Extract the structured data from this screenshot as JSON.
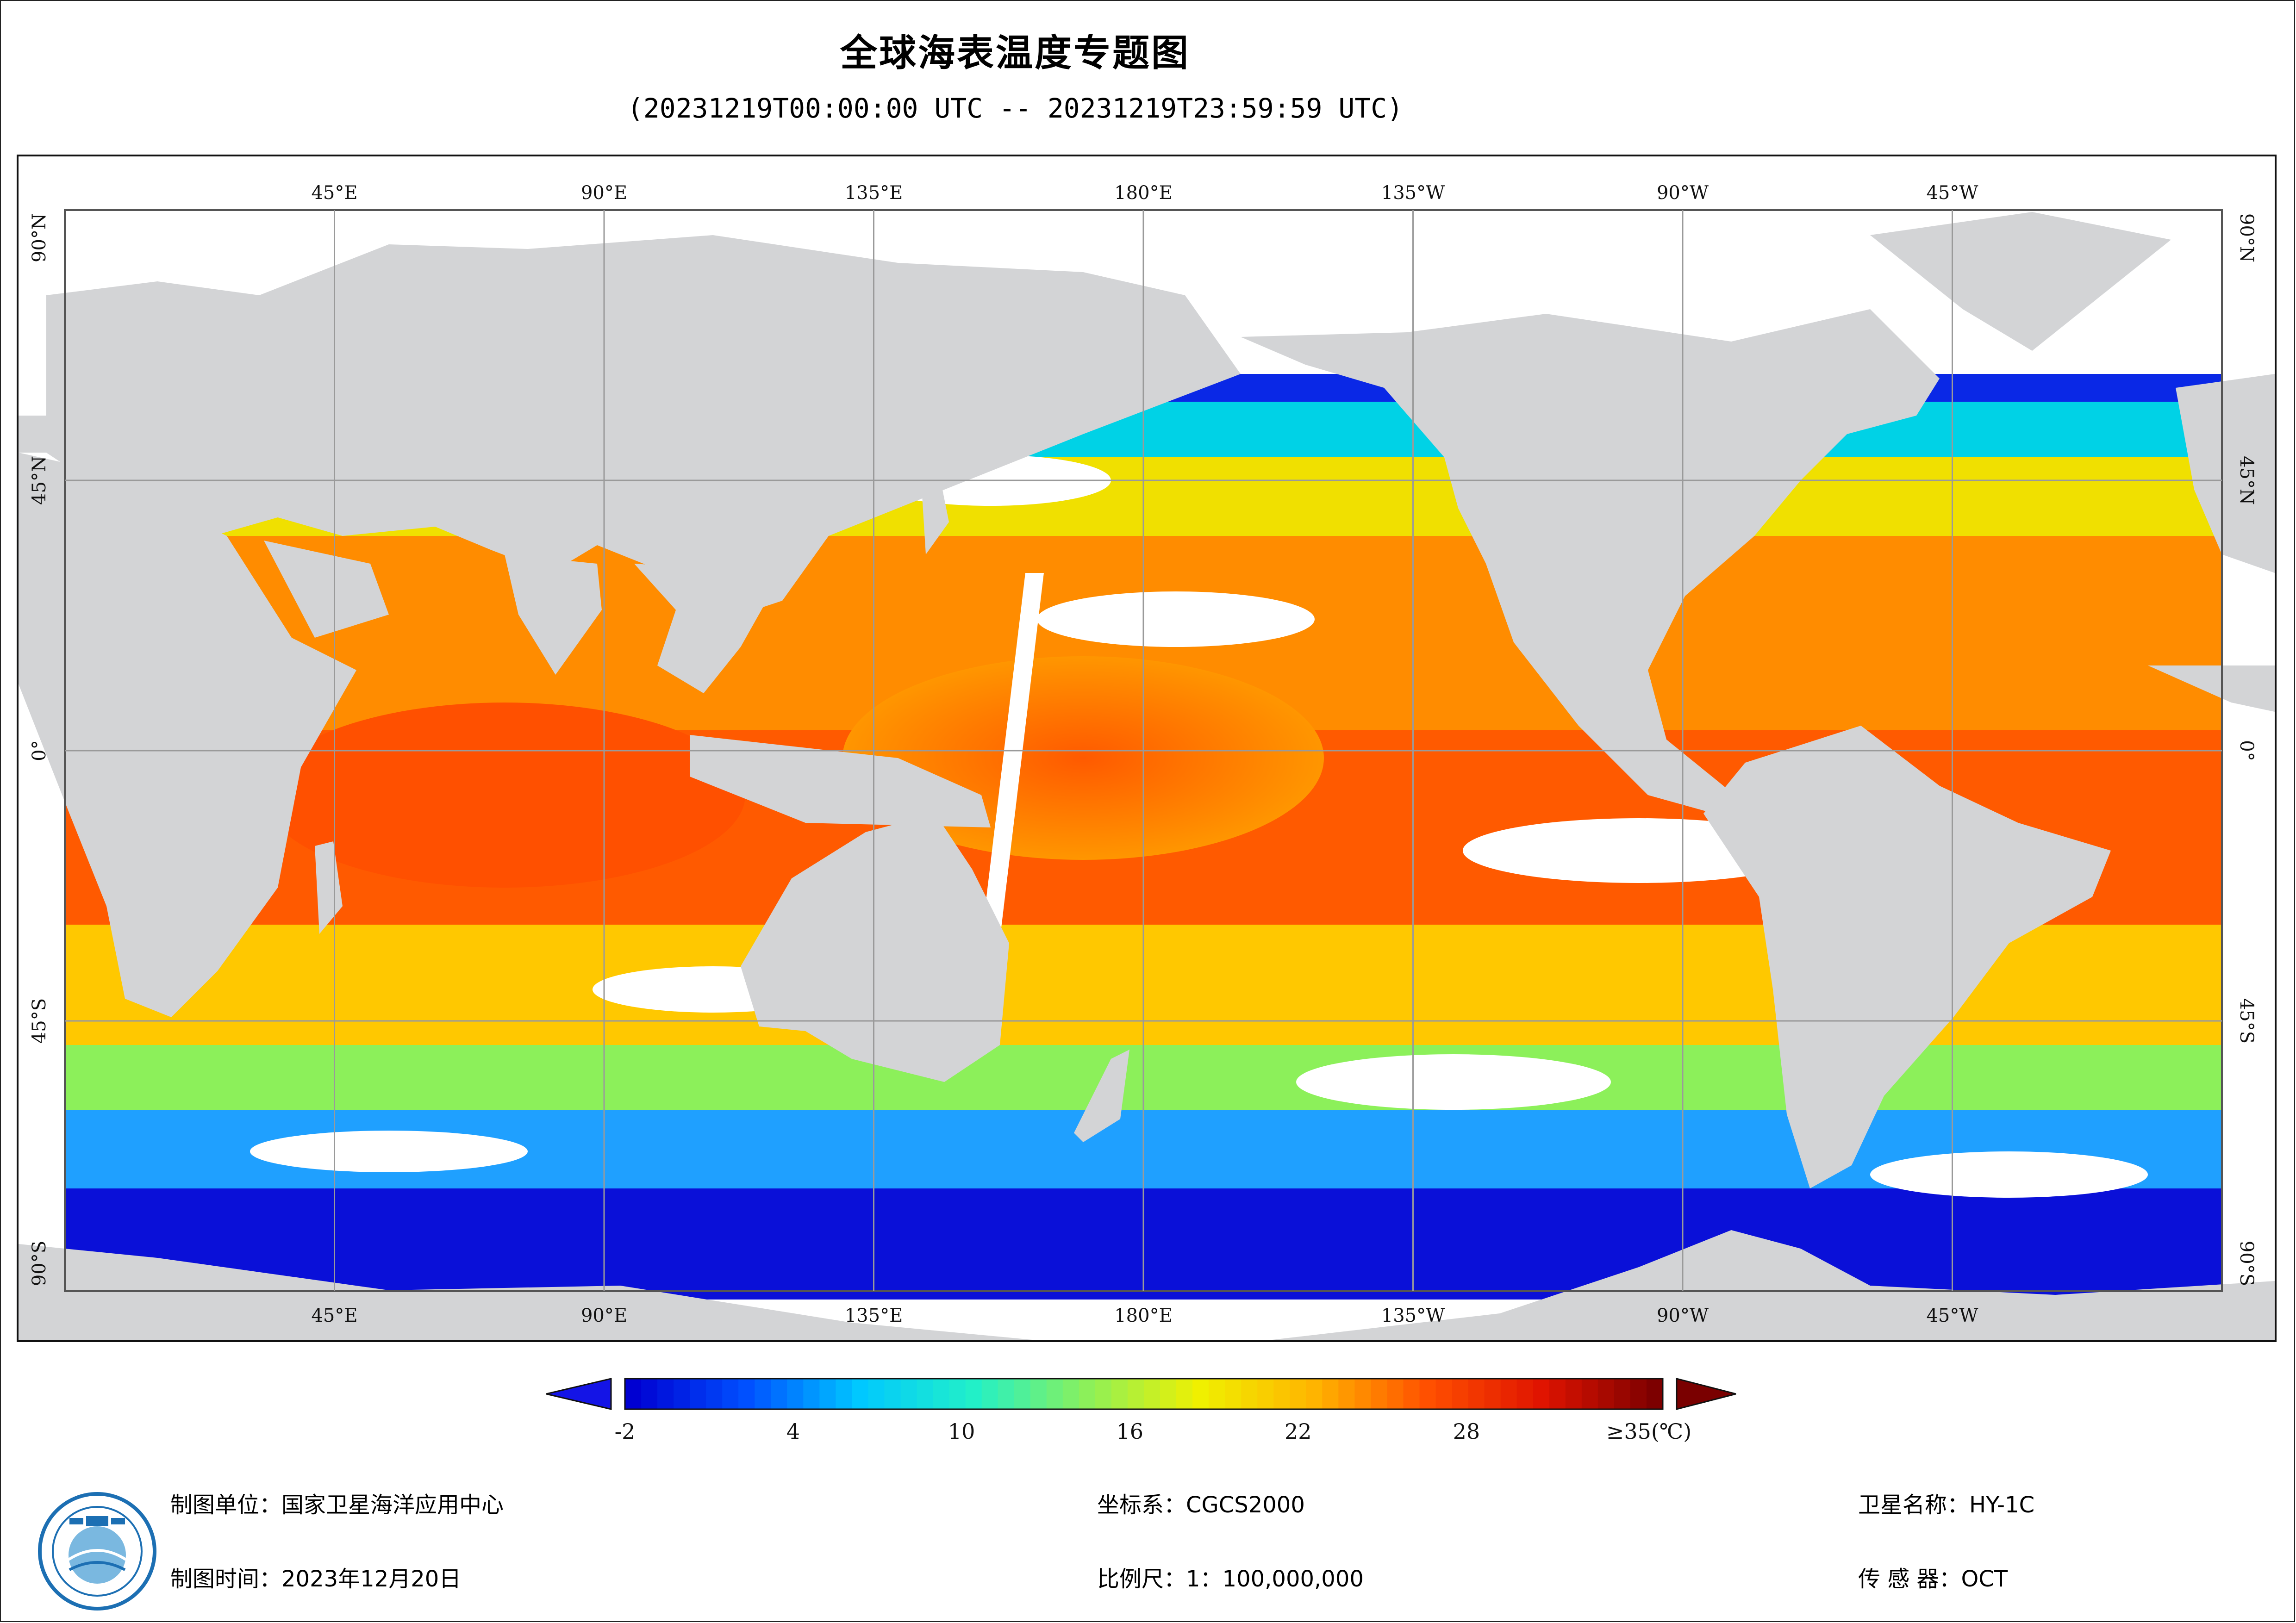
{
  "title": "全球海表温度专题图",
  "subtitle": "(20231219T00:00:00 UTC -- 20231219T23:59:59 UTC)",
  "map": {
    "projection": "equirectangular",
    "lon_range": [
      0,
      360
    ],
    "lat_range": [
      -90,
      90
    ],
    "grid": true,
    "grid_color": "#9a9a9a",
    "land_color": "#d3d4d6",
    "nodata_color": "#ffffff",
    "top_labels": [
      "45°E",
      "90°E",
      "135°E",
      "180°E",
      "135°W",
      "90°W",
      "45°W"
    ],
    "bottom_labels": [
      "45°E",
      "90°E",
      "135°E",
      "180°E",
      "135°W",
      "90°W",
      "45°W"
    ],
    "lat_labels": [
      "90°N",
      "45°N",
      "0°",
      "45°S",
      "90°S"
    ],
    "lon_ticks": [
      45,
      90,
      135,
      180,
      225,
      270,
      315
    ],
    "lat_ticks": [
      90,
      45,
      0,
      -45,
      -90
    ]
  },
  "colorbar": {
    "min": -2,
    "max": 35,
    "unit": "(℃)",
    "labels": [
      "-2",
      "4",
      "10",
      "16",
      "22",
      "28",
      "≥35(℃)"
    ],
    "label_values": [
      -2,
      4,
      10,
      16,
      22,
      28,
      35
    ],
    "extend": "both",
    "under_color": "#1414e6",
    "over_color": "#7a0000",
    "stops": [
      "#0000d2",
      "#0050ff",
      "#00c8ff",
      "#22f0c8",
      "#8cf05a",
      "#f0f000",
      "#ffb400",
      "#ff5000",
      "#e01400",
      "#7d0000"
    ]
  },
  "footer": {
    "unit": "制图单位：国家卫星海洋应用中心",
    "date": "制图时间：2023年12月20日",
    "crs": "坐标系：CGCS2000",
    "scale": "比例尺：1：100,000,000",
    "satellite": "卫星名称：HY-1C",
    "sensor": "传 感 器：OCT"
  },
  "logo": {
    "icon": "nsoas-logo-icon",
    "outer_color": "#1c6fb3",
    "inner_color": "#7ab8e0"
  }
}
